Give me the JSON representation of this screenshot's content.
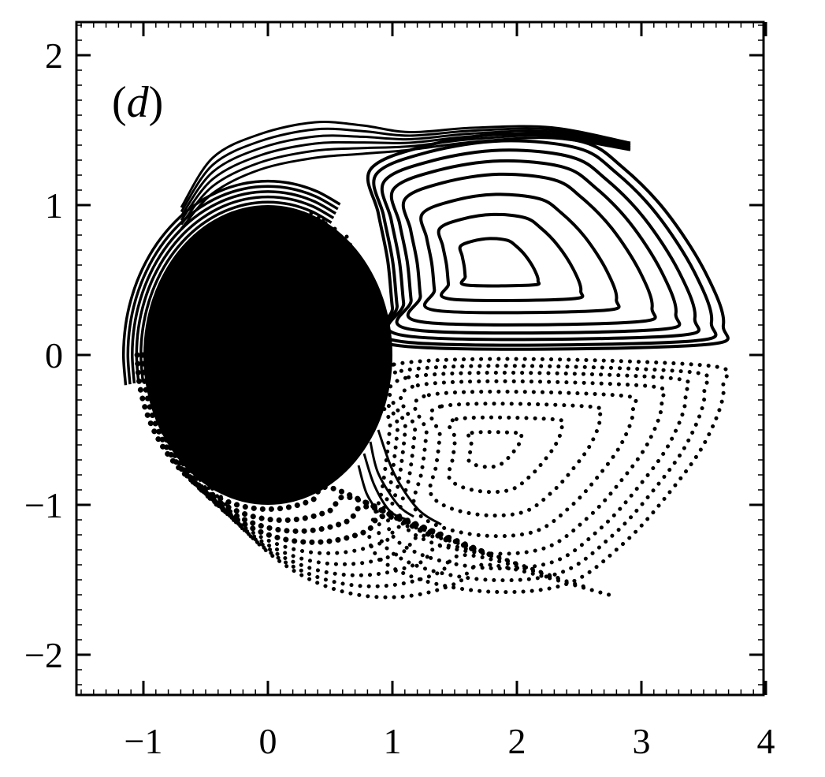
{
  "chart_data": {
    "type": "line",
    "panel_label_open": "(",
    "panel_label_letter": "d",
    "panel_label_close": ")",
    "title": "",
    "xlabel": "",
    "ylabel": "",
    "xlim": [
      -1.5,
      4.0
    ],
    "ylim": [
      -2.3,
      2.3
    ],
    "x_ticks": [
      -1,
      0,
      1,
      2,
      3,
      4
    ],
    "y_ticks": [
      -2,
      -1,
      0,
      1,
      2
    ],
    "x_tick_labels": [
      "−1",
      "0",
      "1",
      "2",
      "3",
      "4"
    ],
    "y_tick_labels": [
      "−2",
      "−1",
      "0",
      "1",
      "2"
    ],
    "grid": false,
    "cylinder": {
      "center": [
        0,
        0
      ],
      "radius": 1
    },
    "upper_vortex": {
      "center": [
        1.75,
        0.58
      ],
      "style": "solid"
    },
    "lower_vortex": {
      "center": [
        1.75,
        -0.6
      ],
      "style": "dotted"
    }
  }
}
